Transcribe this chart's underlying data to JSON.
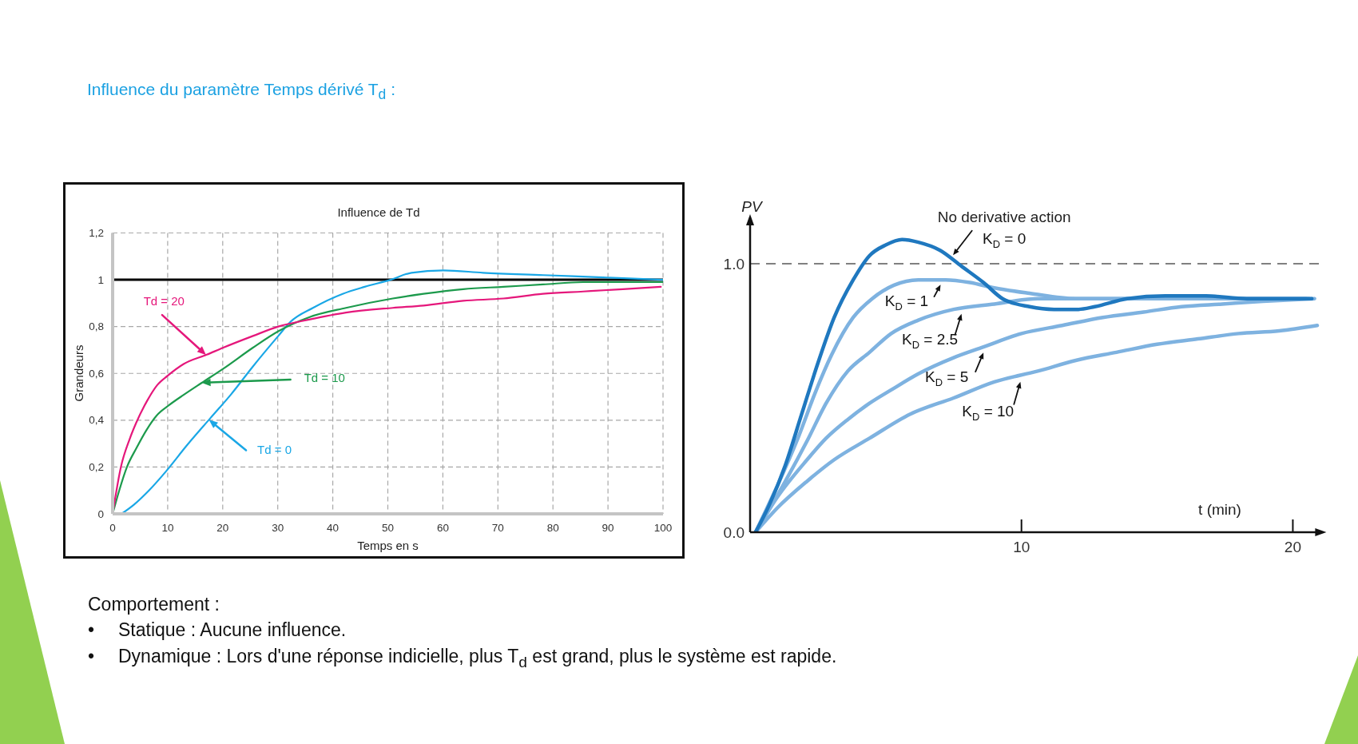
{
  "chart_data": [
    {
      "type": "line",
      "title": "Influence de Td",
      "xlabel": "Temps en s",
      "ylabel": "Grandeurs",
      "annotations": [
        "Influence du paramètre Temps dérivé T$_{d}$ :",
        "Comportement :",
        "•\tStatique : Aucune influence.",
        "•\tDynamique : Lors d'une réponse indicielle, plus T$_{d}$ est grand, plus le système est rapide."
      ],
      "xlim": [
        0,
        100
      ],
      "xticks": [
        0,
        10,
        20,
        30,
        40,
        50,
        60,
        70,
        80,
        90,
        100
      ],
      "ylim": [
        0,
        1.2
      ],
      "yticks": [
        0,
        {
          "value": 0.2,
          "label": "0,2"
        },
        {
          "value": 0.4,
          "label": "0,4"
        },
        {
          "value": 0.6,
          "label": "0,6"
        },
        {
          "value": 0.8,
          "label": "0,8"
        },
        1,
        {
          "value": 1.2,
          "label": "1,2"
        }
      ],
      "grid": true,
      "marker": "none",
      "line_style": "solid",
      "ref_lines": [
        {
          "axis": "y",
          "value": 1,
          "color": "#000000"
        }
      ],
      "series": [
        {
          "name": "Td = 0",
          "color": "#1aa7e6",
          "x": [
            1.6,
            3.9,
            6.6,
            10,
            13.4,
            17.8,
            21.5,
            25.5,
            30.1,
            32.3,
            36.4,
            41.8,
            45.8,
            50.5,
            54.3,
            60.1,
            67.3,
            78.2,
            89.1,
            100
          ],
          "values": [
            0,
            0.04,
            0.1,
            0.19,
            0.29,
            0.41,
            0.51,
            0.63,
            0.76,
            0.82,
            0.88,
            0.94,
            0.97,
            1.0,
            1.03,
            1.04,
            1.03,
            1.02,
            1.01,
            1.0
          ]
        },
        {
          "name": "Td = 10",
          "color": "#1c9a4c",
          "x": [
            0,
            1.2,
            2.6,
            4.3,
            6.2,
            8,
            10,
            13,
            16.2,
            20.1,
            25.5,
            30.1,
            35.7,
            42.4,
            50.9,
            56.5,
            63.7,
            71,
            78.2,
            85.5,
            100
          ],
          "values": [
            0,
            0.1,
            0.2,
            0.28,
            0.36,
            0.42,
            0.46,
            0.51,
            0.56,
            0.62,
            0.71,
            0.78,
            0.84,
            0.88,
            0.92,
            0.94,
            0.96,
            0.97,
            0.98,
            0.99,
            0.99
          ]
        },
        {
          "name": "Td = 20",
          "color": "#e5177b",
          "x": [
            0,
            1.5,
            3.1,
            4.3,
            6.2,
            8.1,
            10,
            12.9,
            17.1,
            20.1,
            25.5,
            30.1,
            35.7,
            42.4,
            50.9,
            56.5,
            63.7,
            71,
            78.2,
            85.5,
            92.7,
            99.6
          ],
          "values": [
            0,
            0.2,
            0.32,
            0.39,
            0.48,
            0.55,
            0.59,
            0.64,
            0.68,
            0.71,
            0.76,
            0.8,
            0.83,
            0.86,
            0.88,
            0.89,
            0.91,
            0.92,
            0.94,
            0.95,
            0.96,
            0.97
          ]
        }
      ]
    },
    {
      "type": "line",
      "xlabel": "t (min)",
      "ylabel": "PV",
      "annotations": [
        "No derivative action"
      ],
      "xlim": [
        0,
        21
      ],
      "xticks": [
        10,
        20
      ],
      "ylim": [
        0,
        1.17
      ],
      "yticks": [
        {
          "value": 0,
          "label": "0.0"
        },
        {
          "value": 1,
          "label": "1.0"
        }
      ],
      "marker": "none",
      "line_style": "solid",
      "ref_lines": [
        {
          "axis": "y",
          "value": 1,
          "color": "#808080",
          "line_style": "dashed"
        }
      ],
      "series": [
        {
          "name": "K$_{D}$ = 0",
          "color": "#1f78bf",
          "x": [
            0.2,
            0.7,
            1.3,
            1.9,
            2.5,
            3.1,
            3.8,
            4.4,
            5,
            5.6,
            6.2,
            7,
            7.8,
            8.6,
            9.3,
            10.3,
            11.2,
            12.1,
            12.7,
            13.9,
            15.3,
            16.8,
            18.3,
            20.7
          ],
          "values": [
            0,
            0.1,
            0.25,
            0.44,
            0.63,
            0.8,
            0.94,
            1.03,
            1.07,
            1.09,
            1.08,
            1.05,
            0.99,
            0.93,
            0.87,
            0.84,
            0.83,
            0.83,
            0.84,
            0.87,
            0.88,
            0.88,
            0.87,
            0.87
          ]
        },
        {
          "name": "K$_{D}$ = 1",
          "color": "#7eb2e0",
          "x": [
            0.2,
            1.3,
            1.8,
            2.4,
            3,
            3.8,
            4.5,
            5.3,
            6.2,
            7.2,
            8.1,
            9,
            10.3,
            12,
            15.9,
            20.6
          ],
          "values": [
            0,
            0.24,
            0.36,
            0.52,
            0.66,
            0.8,
            0.87,
            0.92,
            0.94,
            0.94,
            0.93,
            0.91,
            0.89,
            0.87,
            0.87,
            0.87
          ]
        },
        {
          "name": "K$_{D}$ = 2.5",
          "color": "#7eb2e0",
          "x": [
            0.2,
            1.3,
            2.1,
            2.8,
            3.6,
            4.4,
            5.2,
            6.2,
            7.5,
            9,
            10.6,
            12,
            14.5,
            20.5
          ],
          "values": [
            0,
            0.19,
            0.34,
            0.48,
            0.6,
            0.67,
            0.74,
            0.79,
            0.83,
            0.85,
            0.87,
            0.87,
            0.87,
            0.87
          ]
        },
        {
          "name": "K$_{D}$ = 5",
          "color": "#7eb2e0",
          "x": [
            0.2,
            1,
            2.1,
            2.8,
            3.6,
            4.4,
            5.2,
            6.2,
            7.5,
            8.6,
            10,
            11.5,
            13,
            14.5,
            15.9,
            17.4,
            18.9,
            20.8
          ],
          "values": [
            0,
            0.13,
            0.27,
            0.35,
            0.42,
            0.48,
            0.53,
            0.59,
            0.65,
            0.69,
            0.74,
            0.77,
            0.8,
            0.82,
            0.84,
            0.85,
            0.86,
            0.87
          ]
        },
        {
          "name": "K$_{D}$ = 10",
          "color": "#7eb2e0",
          "x": [
            0.2,
            1,
            2.1,
            3.1,
            4.4,
            5.9,
            7.5,
            9,
            10.6,
            12,
            13.5,
            15,
            16.5,
            18,
            19.5,
            20.9
          ],
          "values": [
            0,
            0.09,
            0.19,
            0.27,
            0.35,
            0.44,
            0.5,
            0.56,
            0.6,
            0.64,
            0.67,
            0.7,
            0.72,
            0.74,
            0.75,
            0.77
          ]
        }
      ]
    }
  ]
}
